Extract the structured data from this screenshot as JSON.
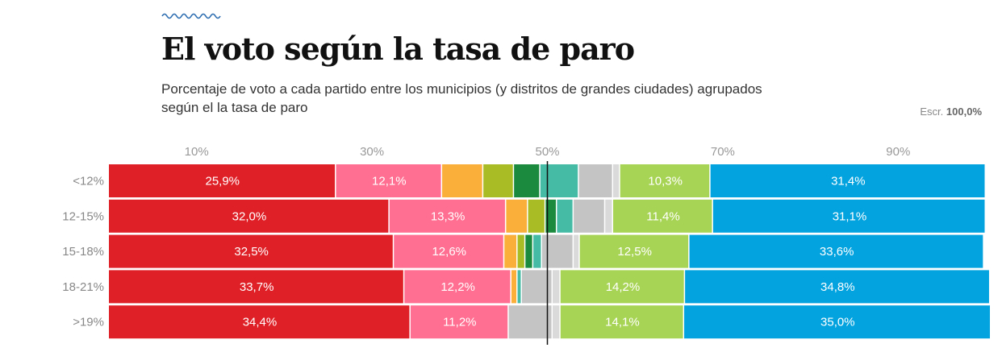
{
  "header": {
    "title": "El voto según la tasa de paro",
    "subtitle": "Porcentaje de voto a cada partido entre los municipios (y distritos de grandes ciudades) agrupados según el la tasa de paro",
    "scrutiny_label": "Escr.",
    "scrutiny_value": "100,0%"
  },
  "chart_data": {
    "type": "bar",
    "orientation": "horizontal-stacked",
    "title": "El voto según la tasa de paro",
    "xlim": [
      0,
      100
    ],
    "x_ticks": [
      "10%",
      "30%",
      "50%",
      "70%",
      "90%"
    ],
    "x_tick_values": [
      10,
      30,
      50,
      70,
      90
    ],
    "reference_line": 50,
    "categories": [
      "<12%",
      "12-15%",
      "15-18%",
      "18-21%",
      ">19%"
    ],
    "colors": [
      "#e02027",
      "#ff6f91",
      "#fbaf3b",
      "#a9bb25",
      "#1b8a3e",
      "#45bba6",
      "#c4c4c4",
      "#dadada",
      "#a8d455",
      "#03a3df"
    ],
    "series": [
      {
        "values": [
          25.9,
          32.0,
          32.5,
          33.7,
          34.4
        ],
        "labels": [
          "25,9%",
          "32,0%",
          "32,5%",
          "33,7%",
          "34,4%"
        ]
      },
      {
        "values": [
          12.1,
          13.3,
          12.6,
          12.2,
          11.2
        ],
        "labels": [
          "12,1%",
          "13,3%",
          "12,6%",
          "12,2%",
          "11,2%"
        ]
      },
      {
        "values": [
          4.7,
          2.5,
          1.5,
          0.7,
          0.0
        ],
        "labels": [
          "",
          "",
          "",
          "",
          ""
        ]
      },
      {
        "values": [
          3.5,
          2.0,
          0.9,
          0.0,
          0.0
        ],
        "labels": [
          "",
          "",
          "",
          "",
          ""
        ]
      },
      {
        "values": [
          3.0,
          1.3,
          0.9,
          0.0,
          0.0
        ],
        "labels": [
          "",
          "",
          "",
          "",
          ""
        ]
      },
      {
        "values": [
          4.4,
          1.9,
          1.0,
          0.5,
          0.0
        ],
        "labels": [
          "",
          "",
          "",
          "",
          ""
        ]
      },
      {
        "values": [
          3.9,
          3.6,
          3.6,
          3.5,
          5.0
        ],
        "labels": [
          "",
          "",
          "",
          "",
          ""
        ]
      },
      {
        "values": [
          0.8,
          0.9,
          0.7,
          0.9,
          0.9
        ],
        "labels": [
          "",
          "",
          "",
          "",
          ""
        ]
      },
      {
        "values": [
          10.3,
          11.4,
          12.5,
          14.2,
          14.1
        ],
        "labels": [
          "10,3%",
          "11,4%",
          "12,5%",
          "14,2%",
          "14,1%"
        ]
      },
      {
        "values": [
          31.4,
          31.1,
          33.6,
          34.8,
          35.0
        ],
        "labels": [
          "31,4%",
          "31,1%",
          "33,6%",
          "34,8%",
          "35,0%"
        ]
      }
    ]
  }
}
